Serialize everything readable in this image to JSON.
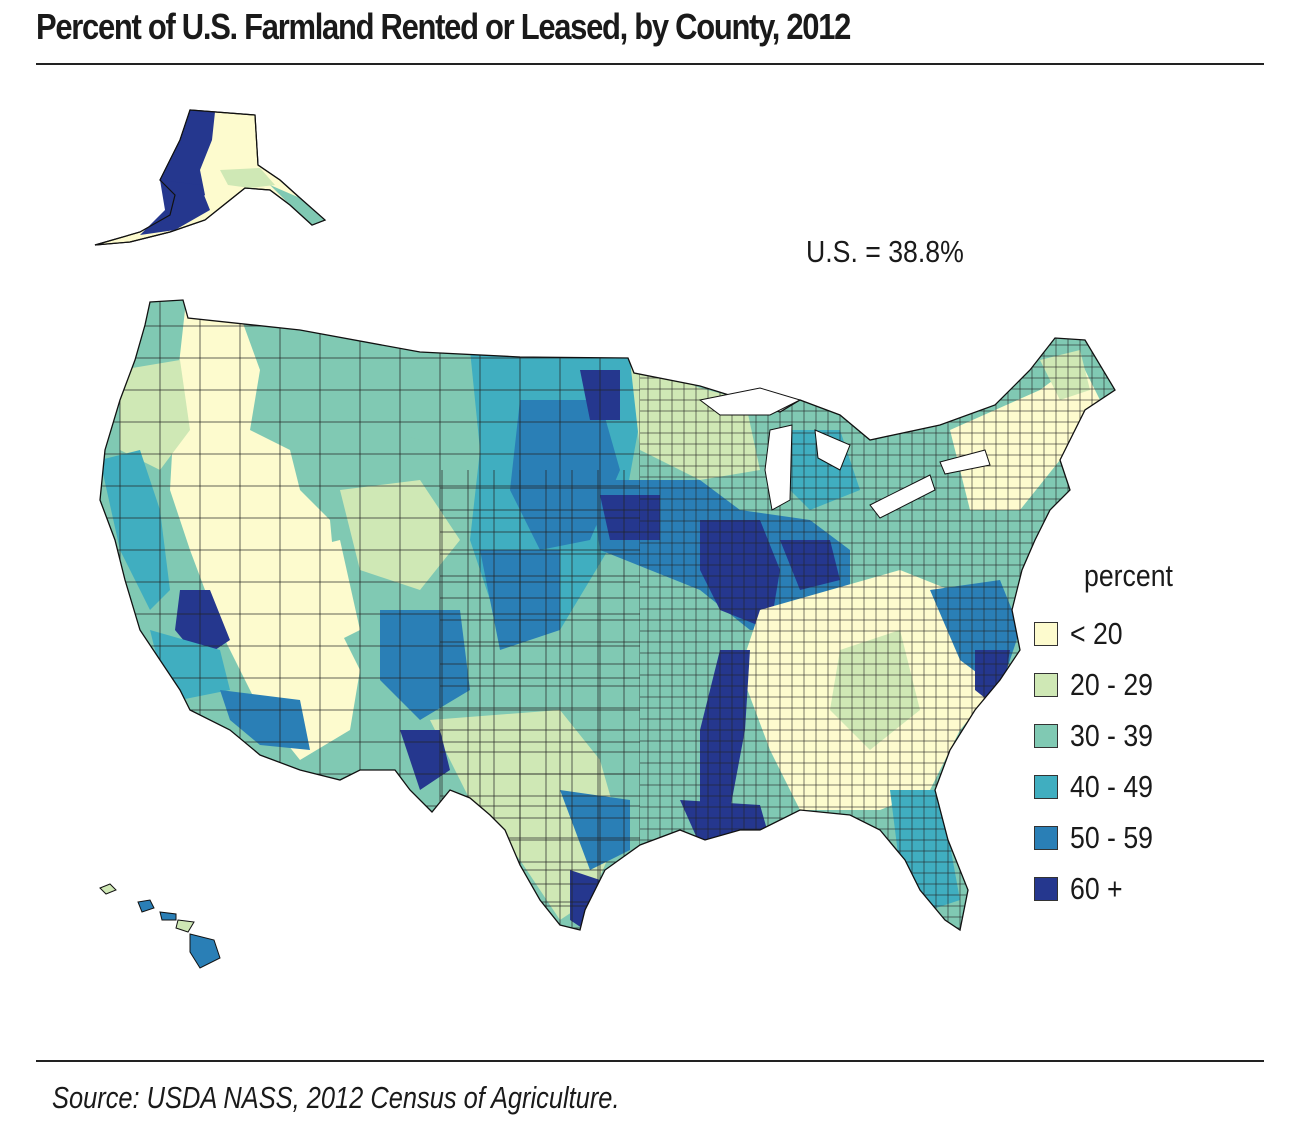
{
  "title": "Percent of U.S. Farmland Rented or Leased, by County, 2012",
  "us_average": "U.S. = 38.8%",
  "legend": {
    "title": "percent",
    "items": [
      {
        "label": "< 20",
        "color": "#fdfbce"
      },
      {
        "label": "20 - 29",
        "color": "#cfe8b5"
      },
      {
        "label": "30 - 39",
        "color": "#80c9b3"
      },
      {
        "label": "40 - 49",
        "color": "#40aec0"
      },
      {
        "label": "50 - 59",
        "color": "#2a7fb6"
      },
      {
        "label": "60 +",
        "color": "#25378e"
      }
    ]
  },
  "source": "Source: USDA NASS, 2012 Census of Agriculture."
}
